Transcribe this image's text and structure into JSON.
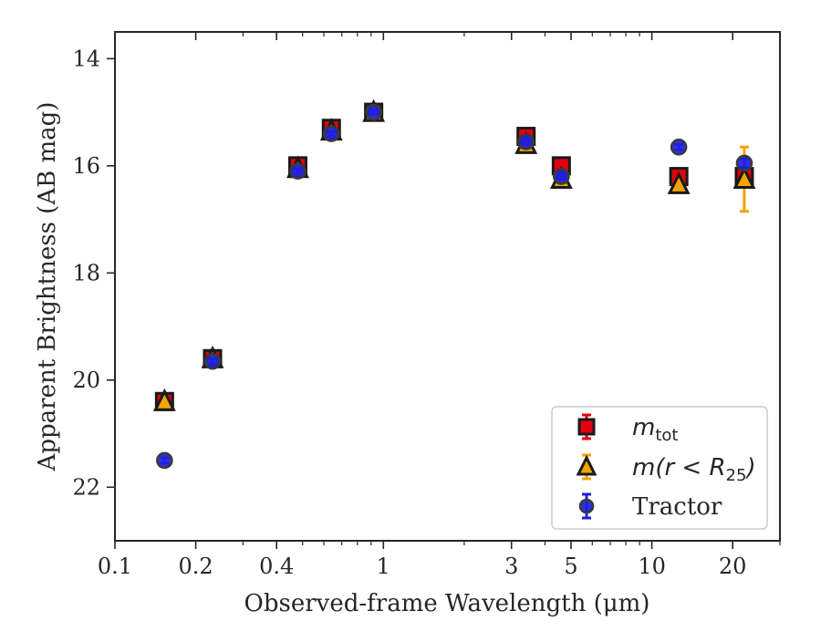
{
  "chart_data": {
    "type": "scatter",
    "title": "",
    "xlabel": "Observed-frame Wavelength (μm)",
    "ylabel": "Apparent Brightness (AB mag)",
    "x_scale": "log",
    "xlim": [
      0.1,
      30
    ],
    "ylim": [
      23,
      13.5
    ],
    "y_inverted": true,
    "grid": false,
    "legend_position": "lower-right",
    "x_ticks": [
      {
        "value": 0.1,
        "label": "0.1"
      },
      {
        "value": 0.2,
        "label": "0.2"
      },
      {
        "value": 0.4,
        "label": "0.4"
      },
      {
        "value": 1,
        "label": "1"
      },
      {
        "value": 3,
        "label": "3"
      },
      {
        "value": 5,
        "label": "5"
      },
      {
        "value": 10,
        "label": "10"
      },
      {
        "value": 20,
        "label": "20"
      }
    ],
    "x_minor_ticks": [
      0.3,
      0.5,
      0.6,
      0.7,
      0.8,
      0.9,
      2,
      4,
      6,
      7,
      8,
      9,
      30
    ],
    "y_ticks": [
      {
        "value": 14,
        "label": "14"
      },
      {
        "value": 16,
        "label": "16"
      },
      {
        "value": 18,
        "label": "18"
      },
      {
        "value": 20,
        "label": "20"
      },
      {
        "value": 22,
        "label": "22"
      }
    ],
    "series": [
      {
        "legend_main": "m",
        "legend_sub": "tot",
        "legend_suffix": "",
        "marker": "square",
        "color": "#e3000f",
        "edge_color": "#1a1a1a",
        "errbar_color": "#e3000f",
        "points": [
          {
            "x": 0.153,
            "y": 20.4,
            "err": 0.05
          },
          {
            "x": 0.231,
            "y": 19.6,
            "err": 0.05
          },
          {
            "x": 0.48,
            "y": 16.0,
            "err": 0.04
          },
          {
            "x": 0.64,
            "y": 15.3,
            "err": 0.04
          },
          {
            "x": 0.92,
            "y": 15.0,
            "err": 0.04
          },
          {
            "x": 3.4,
            "y": 15.45,
            "err": 0.05
          },
          {
            "x": 4.6,
            "y": 16.0,
            "err": 0.05
          },
          {
            "x": 12.6,
            "y": 16.2,
            "err": 0.05
          },
          {
            "x": 22.1,
            "y": 16.2,
            "err": 0.1
          }
        ]
      },
      {
        "legend_main": "m(r < R",
        "legend_sub": "25",
        "legend_suffix": ")",
        "marker": "triangle",
        "color": "#f5a300",
        "edge_color": "#1a1a1a",
        "errbar_color": "#f5a300",
        "points": [
          {
            "x": 0.153,
            "y": 20.4,
            "err": 0.05
          },
          {
            "x": 0.231,
            "y": 19.6,
            "err": 0.05
          },
          {
            "x": 0.48,
            "y": 16.05,
            "err": 0.04
          },
          {
            "x": 0.64,
            "y": 15.35,
            "err": 0.04
          },
          {
            "x": 0.92,
            "y": 15.0,
            "err": 0.04
          },
          {
            "x": 3.4,
            "y": 15.6,
            "err": 0.05
          },
          {
            "x": 4.6,
            "y": 16.25,
            "err": 0.05
          },
          {
            "x": 12.6,
            "y": 16.35,
            "err": 0.06
          },
          {
            "x": 22.1,
            "y": 16.25,
            "err": 0.6
          }
        ]
      },
      {
        "legend_main": "Tractor",
        "legend_sub": "",
        "legend_suffix": "",
        "marker": "circle",
        "color": "#1f1fe0",
        "edge_color": "#3a3a3a",
        "errbar_color": "#1f1fe0",
        "points": [
          {
            "x": 0.153,
            "y": 21.5,
            "err": 0.05
          },
          {
            "x": 0.231,
            "y": 19.65,
            "err": 0.05
          },
          {
            "x": 0.48,
            "y": 16.1,
            "err": 0.04
          },
          {
            "x": 0.64,
            "y": 15.4,
            "err": 0.04
          },
          {
            "x": 0.92,
            "y": 15.0,
            "err": 0.04
          },
          {
            "x": 3.4,
            "y": 15.55,
            "err": 0.05
          },
          {
            "x": 4.6,
            "y": 16.2,
            "err": 0.05
          },
          {
            "x": 12.6,
            "y": 15.65,
            "err": 0.05
          },
          {
            "x": 22.1,
            "y": 15.95,
            "err": 0.08
          }
        ]
      }
    ]
  }
}
